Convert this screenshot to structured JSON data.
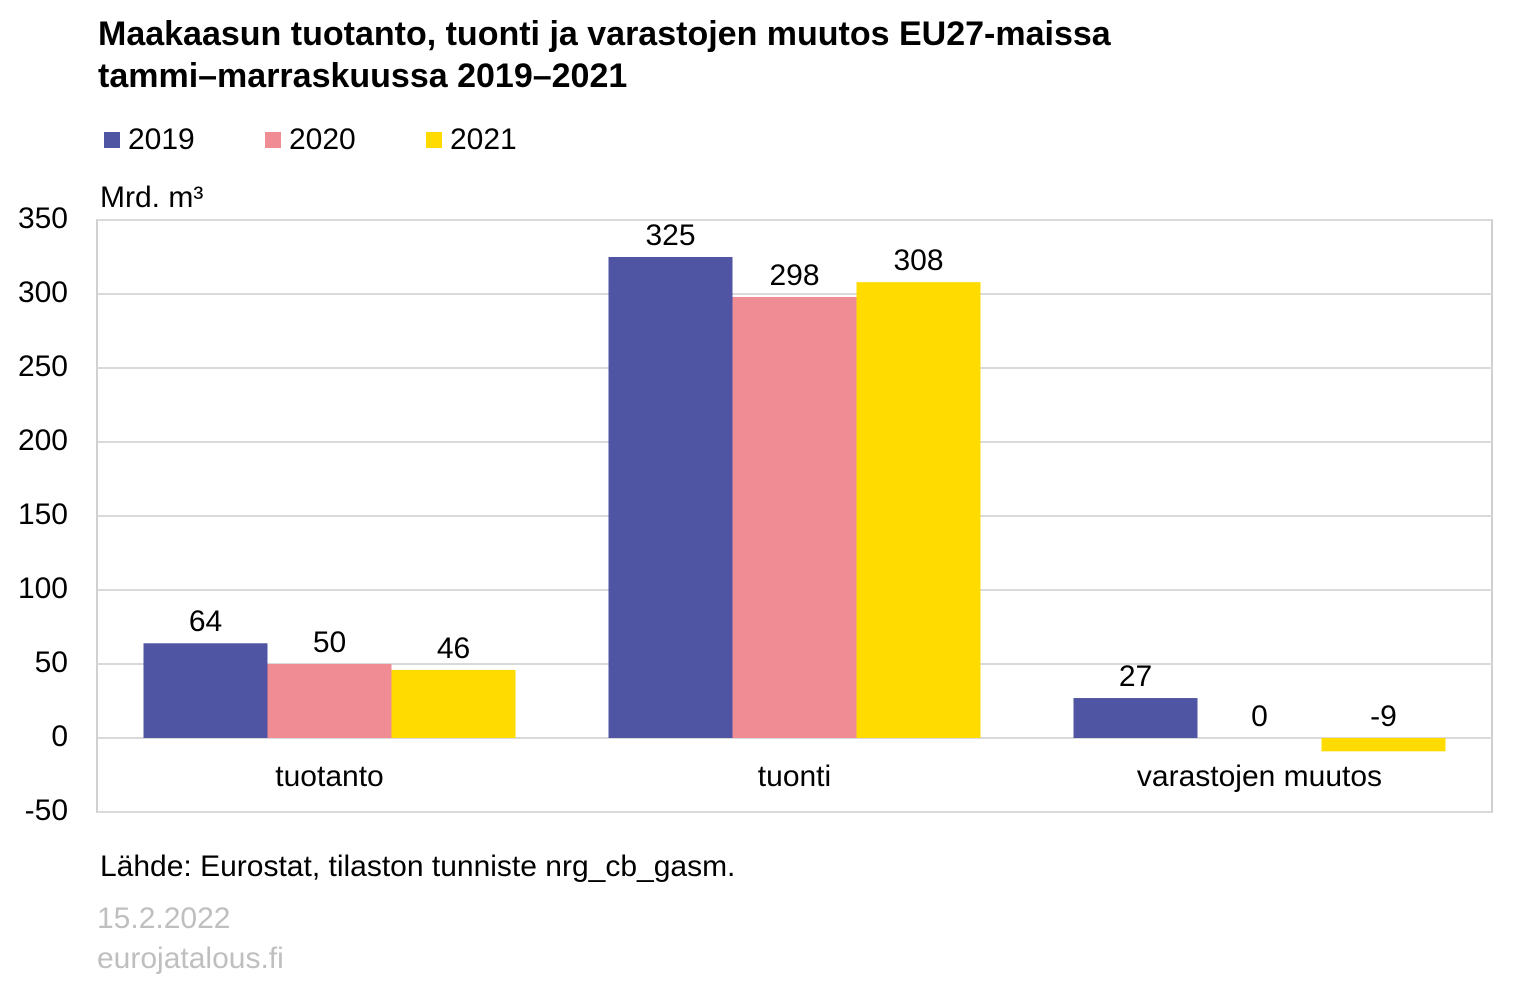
{
  "chart_data": {
    "type": "bar",
    "title": [
      "Maakaasun tuotanto, tuonti ja varastojen muutos EU27-maissa",
      "tammi–marraskuussa 2019–2021"
    ],
    "y_label": "Mrd. m³",
    "categories": [
      "tuotanto",
      "tuonti",
      "varastojen muutos"
    ],
    "series": [
      {
        "name": "2019",
        "color": "#4f55a3",
        "values": [
          64,
          325,
          27
        ]
      },
      {
        "name": "2020",
        "color": "#f08c94",
        "values": [
          50,
          298,
          0
        ]
      },
      {
        "name": "2021",
        "color": "#ffdb00",
        "values": [
          46,
          308,
          -9
        ]
      }
    ],
    "ylim": [
      -50,
      350
    ],
    "yticks": [
      -50,
      0,
      50,
      100,
      150,
      200,
      250,
      300,
      350
    ],
    "grid": true,
    "legend": "top",
    "source": "Lähde: Eurostat, tilaston tunniste nrg_cb_gasm.",
    "date": "15.2.2022",
    "site": "eurojatalous.fi"
  }
}
